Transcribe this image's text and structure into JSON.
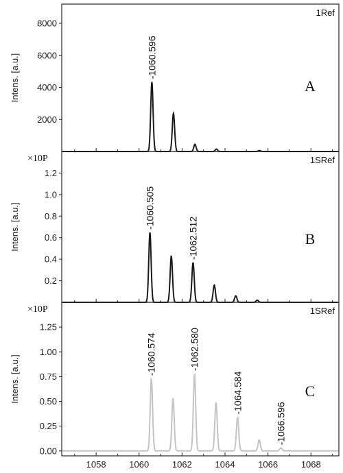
{
  "chart_data": [
    {
      "type": "line",
      "panel_letter": "A",
      "ref_label": "1Ref",
      "ylabel": "Intens. [a.u.]",
      "multiplier": "",
      "ylim": [
        0,
        9200
      ],
      "yticks": [
        2000,
        4000,
        6000,
        8000
      ],
      "ytick_labels": [
        "2000",
        "4000",
        "6000",
        "8000"
      ],
      "xlim": [
        1056.4,
        1069.3
      ],
      "line_color": "#1a1a1a",
      "series": [
        {
          "peaks": [
            {
              "x": 1060.596,
              "y": 4350
            },
            {
              "x": 1061.6,
              "y": 2400
            },
            {
              "x": 1062.6,
              "y": 450
            },
            {
              "x": 1063.6,
              "y": 150
            },
            {
              "x": 1065.6,
              "y": 60
            }
          ]
        }
      ],
      "annotations": [
        {
          "x": 1060.596,
          "y": 4350,
          "text": "-1060.596"
        }
      ]
    },
    {
      "type": "line",
      "panel_letter": "B",
      "ref_label": "1SRef",
      "ylabel": "Intens. [a.u.]",
      "multiplier": "×10P",
      "ylim": [
        0,
        1.4
      ],
      "yticks": [
        0.2,
        0.4,
        0.6,
        0.8,
        1.0,
        1.2
      ],
      "ytick_labels": [
        "0.2",
        "0.4",
        "0.6",
        "0.8",
        "1.0",
        "1.2"
      ],
      "xlim": [
        1056.4,
        1069.3
      ],
      "line_color": "#1a1a1a",
      "series": [
        {
          "peaks": [
            {
              "x": 1060.505,
              "y": 0.65
            },
            {
              "x": 1061.5,
              "y": 0.43
            },
            {
              "x": 1062.512,
              "y": 0.37
            },
            {
              "x": 1063.5,
              "y": 0.16
            },
            {
              "x": 1064.5,
              "y": 0.06
            },
            {
              "x": 1065.5,
              "y": 0.02
            }
          ]
        }
      ],
      "annotations": [
        {
          "x": 1060.505,
          "y": 0.65,
          "text": "-1060.505"
        },
        {
          "x": 1062.512,
          "y": 0.37,
          "text": "-1062.512"
        }
      ]
    },
    {
      "type": "line",
      "panel_letter": "C",
      "ref_label": "1SRef",
      "ylabel": "Intens. [a.u.]",
      "multiplier": "×10P",
      "ylim": [
        -0.05,
        1.5
      ],
      "yticks": [
        0.0,
        0.25,
        0.5,
        0.75,
        1.0,
        1.25
      ],
      "ytick_labels": [
        "0.00",
        "0.25",
        "0.50",
        "0.75",
        "1.00",
        "1.25"
      ],
      "xlim": [
        1056.4,
        1069.3
      ],
      "xticks": [
        1058,
        1060,
        1062,
        1064,
        1066,
        1068
      ],
      "xtick_labels": [
        "1058",
        "1060",
        "1062",
        "1064",
        "1066",
        "1068"
      ],
      "line_color": "#c4c4c4",
      "series": [
        {
          "peaks": [
            {
              "x": 1060.574,
              "y": 0.73
            },
            {
              "x": 1061.58,
              "y": 0.53
            },
            {
              "x": 1062.58,
              "y": 0.78
            },
            {
              "x": 1063.58,
              "y": 0.49
            },
            {
              "x": 1064.584,
              "y": 0.34
            },
            {
              "x": 1065.59,
              "y": 0.11
            },
            {
              "x": 1066.596,
              "y": 0.03
            }
          ]
        }
      ],
      "annotations": [
        {
          "x": 1060.574,
          "y": 0.73,
          "text": "-1060.574"
        },
        {
          "x": 1062.58,
          "y": 0.78,
          "text": "-1062.580"
        },
        {
          "x": 1064.584,
          "y": 0.34,
          "text": "-1064.584"
        },
        {
          "x": 1066.596,
          "y": 0.03,
          "text": "-1066.596"
        }
      ]
    }
  ]
}
